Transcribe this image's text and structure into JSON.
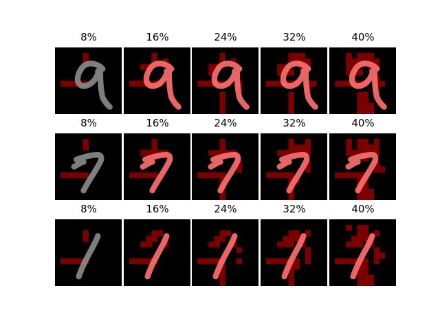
{
  "row_labels": [
    [
      "8%",
      "16%",
      "24%",
      "32%",
      "40%"
    ],
    [
      "8%",
      "16%",
      "24%",
      "32%",
      "40%"
    ],
    [
      "8%",
      "16%",
      "24%",
      "32%",
      "40%"
    ]
  ],
  "digits": [
    "nine",
    "seven",
    "one"
  ],
  "colors": {
    "background": "#000000",
    "mask": "#7a0000",
    "stroke_plain": "#8c8c8c",
    "stroke_highlight": "#ff7070"
  }
}
